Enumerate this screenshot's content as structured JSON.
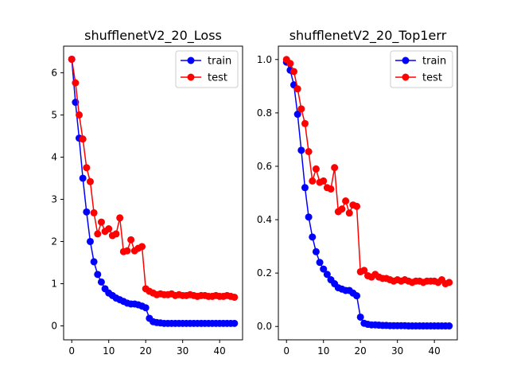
{
  "colors": {
    "train": "#0000ff",
    "test": "#ff0000"
  },
  "chart_data": [
    {
      "type": "line",
      "title": "shufflenetV2_20_Loss",
      "xlabel": "",
      "ylabel": "",
      "xlim": [
        -2.2,
        46.2
      ],
      "ylim": [
        -0.33,
        6.63
      ],
      "xticks": [
        0,
        10,
        20,
        30,
        40
      ],
      "yticks": [
        0,
        1,
        2,
        3,
        4,
        5,
        6
      ],
      "ytick_labels": [
        "0",
        "1",
        "2",
        "3",
        "4",
        "5",
        "6"
      ],
      "legend": "top-right",
      "x": [
        0,
        1,
        2,
        3,
        4,
        5,
        6,
        7,
        8,
        9,
        10,
        11,
        12,
        13,
        14,
        15,
        16,
        17,
        18,
        19,
        20,
        21,
        22,
        23,
        24,
        25,
        26,
        27,
        28,
        29,
        30,
        31,
        32,
        33,
        34,
        35,
        36,
        37,
        38,
        39,
        40,
        41,
        42,
        43,
        44
      ],
      "series": [
        {
          "name": "train",
          "values": [
            6.32,
            5.3,
            4.45,
            3.5,
            2.7,
            2.0,
            1.52,
            1.22,
            1.04,
            0.88,
            0.78,
            0.72,
            0.66,
            0.62,
            0.58,
            0.54,
            0.52,
            0.52,
            0.5,
            0.47,
            0.43,
            0.18,
            0.1,
            0.08,
            0.07,
            0.06,
            0.06,
            0.06,
            0.06,
            0.06,
            0.06,
            0.06,
            0.06,
            0.06,
            0.06,
            0.06,
            0.06,
            0.06,
            0.06,
            0.06,
            0.06,
            0.06,
            0.06,
            0.06,
            0.06
          ]
        },
        {
          "name": "test",
          "values": [
            6.32,
            5.76,
            5.0,
            4.43,
            3.75,
            3.42,
            2.68,
            2.18,
            2.46,
            2.24,
            2.3,
            2.14,
            2.18,
            2.56,
            1.76,
            1.78,
            2.04,
            1.78,
            1.84,
            1.88,
            0.88,
            0.82,
            0.78,
            0.74,
            0.76,
            0.74,
            0.74,
            0.76,
            0.72,
            0.74,
            0.72,
            0.72,
            0.74,
            0.72,
            0.7,
            0.72,
            0.72,
            0.7,
            0.7,
            0.72,
            0.7,
            0.7,
            0.72,
            0.7,
            0.68
          ]
        }
      ]
    },
    {
      "type": "line",
      "title": "shufflenetV2_20_Top1err",
      "xlabel": "",
      "ylabel": "",
      "xlim": [
        -2.2,
        46.2
      ],
      "ylim": [
        -0.05,
        1.05
      ],
      "xticks": [
        0,
        10,
        20,
        30,
        40
      ],
      "yticks": [
        0,
        0.2,
        0.4,
        0.6,
        0.8,
        1.0
      ],
      "ytick_labels": [
        "0.0",
        "0.2",
        "0.4",
        "0.6",
        "0.8",
        "1.0"
      ],
      "legend": "top-right",
      "x": [
        0,
        1,
        2,
        3,
        4,
        5,
        6,
        7,
        8,
        9,
        10,
        11,
        12,
        13,
        14,
        15,
        16,
        17,
        18,
        19,
        20,
        21,
        22,
        23,
        24,
        25,
        26,
        27,
        28,
        29,
        30,
        31,
        32,
        33,
        34,
        35,
        36,
        37,
        38,
        39,
        40,
        41,
        42,
        43,
        44
      ],
      "series": [
        {
          "name": "train",
          "values": [
            0.99,
            0.96,
            0.905,
            0.795,
            0.66,
            0.52,
            0.41,
            0.335,
            0.28,
            0.24,
            0.215,
            0.195,
            0.175,
            0.16,
            0.145,
            0.14,
            0.135,
            0.135,
            0.125,
            0.115,
            0.035,
            0.012,
            0.008,
            0.006,
            0.006,
            0.005,
            0.004,
            0.004,
            0.003,
            0.003,
            0.003,
            0.003,
            0.003,
            0.002,
            0.002,
            0.002,
            0.002,
            0.002,
            0.002,
            0.002,
            0.002,
            0.002,
            0.002,
            0.002,
            0.002
          ]
        },
        {
          "name": "test",
          "values": [
            1.0,
            0.985,
            0.955,
            0.89,
            0.815,
            0.76,
            0.655,
            0.545,
            0.59,
            0.54,
            0.545,
            0.52,
            0.515,
            0.595,
            0.43,
            0.44,
            0.47,
            0.425,
            0.455,
            0.45,
            0.205,
            0.21,
            0.19,
            0.185,
            0.195,
            0.185,
            0.18,
            0.18,
            0.175,
            0.17,
            0.175,
            0.17,
            0.175,
            0.17,
            0.165,
            0.17,
            0.17,
            0.165,
            0.17,
            0.17,
            0.17,
            0.165,
            0.175,
            0.16,
            0.165
          ]
        }
      ]
    }
  ]
}
